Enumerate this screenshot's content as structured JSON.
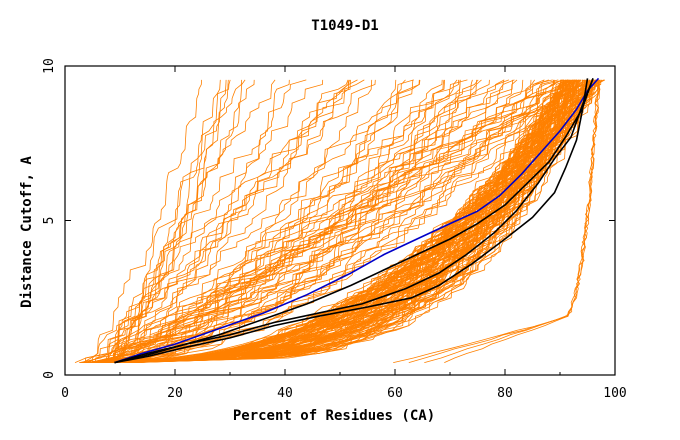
{
  "chart_data": {
    "type": "line",
    "title": "T1049-D1",
    "xlabel": "Percent of Residues (CA)",
    "ylabel": "Distance Cutoff, A",
    "xlim": [
      0,
      100
    ],
    "ylim": [
      0,
      10
    ],
    "x_ticks": [
      "0",
      "20",
      "40",
      "60",
      "80",
      "100"
    ],
    "y_ticks": [
      "0",
      "5",
      "10"
    ],
    "grid": false,
    "legend": "none",
    "colors": {
      "bundle": "#ff8000",
      "blue": "#0000c8",
      "black": "#000000"
    },
    "highlighted_series": [
      {
        "color": "#0000c8",
        "points": [
          [
            9,
            0.4
          ],
          [
            14,
            0.7
          ],
          [
            20,
            1.0
          ],
          [
            28,
            1.5
          ],
          [
            36,
            2.0
          ],
          [
            44,
            2.6
          ],
          [
            52,
            3.3
          ],
          [
            58,
            3.9
          ],
          [
            64,
            4.4
          ],
          [
            70,
            4.9
          ],
          [
            75,
            5.3
          ],
          [
            79,
            5.8
          ],
          [
            83,
            6.5
          ],
          [
            87,
            7.3
          ],
          [
            90,
            7.9
          ],
          [
            93,
            8.6
          ],
          [
            95,
            9.2
          ],
          [
            97,
            9.6
          ]
        ]
      },
      {
        "color": "#000000",
        "points": [
          [
            9,
            0.4
          ],
          [
            14,
            0.6
          ],
          [
            20,
            0.9
          ],
          [
            28,
            1.3
          ],
          [
            36,
            1.8
          ],
          [
            44,
            2.3
          ],
          [
            52,
            2.9
          ],
          [
            58,
            3.4
          ],
          [
            64,
            3.9
          ],
          [
            70,
            4.4
          ],
          [
            75,
            4.9
          ],
          [
            80,
            5.5
          ],
          [
            84,
            6.2
          ],
          [
            88,
            6.9
          ],
          [
            91,
            7.7
          ],
          [
            94,
            8.6
          ],
          [
            96,
            9.6
          ]
        ]
      },
      {
        "color": "#000000",
        "points": [
          [
            9,
            0.4
          ],
          [
            15,
            0.7
          ],
          [
            22,
            1.0
          ],
          [
            30,
            1.3
          ],
          [
            38,
            1.7
          ],
          [
            46,
            2.0
          ],
          [
            54,
            2.3
          ],
          [
            62,
            2.8
          ],
          [
            68,
            3.3
          ],
          [
            73,
            3.9
          ],
          [
            78,
            4.6
          ],
          [
            82,
            5.3
          ],
          [
            86,
            6.2
          ],
          [
            89,
            7.0
          ],
          [
            92,
            7.7
          ],
          [
            94,
            8.7
          ],
          [
            96,
            9.6
          ]
        ]
      },
      {
        "color": "#000000",
        "points": [
          [
            9,
            0.4
          ],
          [
            15,
            0.6
          ],
          [
            22,
            0.9
          ],
          [
            30,
            1.2
          ],
          [
            38,
            1.6
          ],
          [
            46,
            1.9
          ],
          [
            55,
            2.2
          ],
          [
            63,
            2.5
          ],
          [
            68,
            2.9
          ],
          [
            74,
            3.6
          ],
          [
            80,
            4.4
          ],
          [
            85,
            5.1
          ],
          [
            89,
            5.9
          ],
          [
            91,
            6.7
          ],
          [
            93,
            7.6
          ],
          [
            94,
            8.5
          ],
          [
            95,
            9.6
          ]
        ]
      }
    ]
  }
}
